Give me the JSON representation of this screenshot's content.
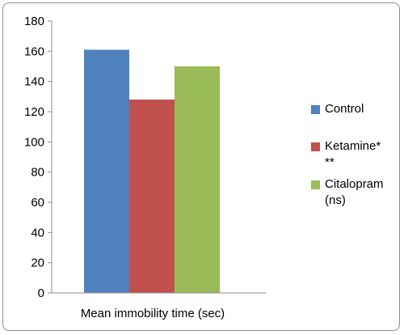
{
  "chart_data": {
    "type": "bar",
    "title": "",
    "xlabel": "Mean immobility time (sec)",
    "ylabel": "",
    "categories": [
      "Mean immobility time (sec)"
    ],
    "series": [
      {
        "name": "Control",
        "values": [
          161
        ],
        "color": "#4F81BD"
      },
      {
        "name": "Ketamine*\n**",
        "values": [
          128
        ],
        "color": "#C0504D"
      },
      {
        "name": "Citalopram\n(ns)",
        "values": [
          150
        ],
        "color": "#9BBB59"
      }
    ],
    "ylim": [
      0,
      180
    ],
    "yticks": [
      0,
      20,
      40,
      60,
      80,
      100,
      120,
      140,
      160,
      180
    ],
    "grid": false,
    "legend_position": "right"
  }
}
